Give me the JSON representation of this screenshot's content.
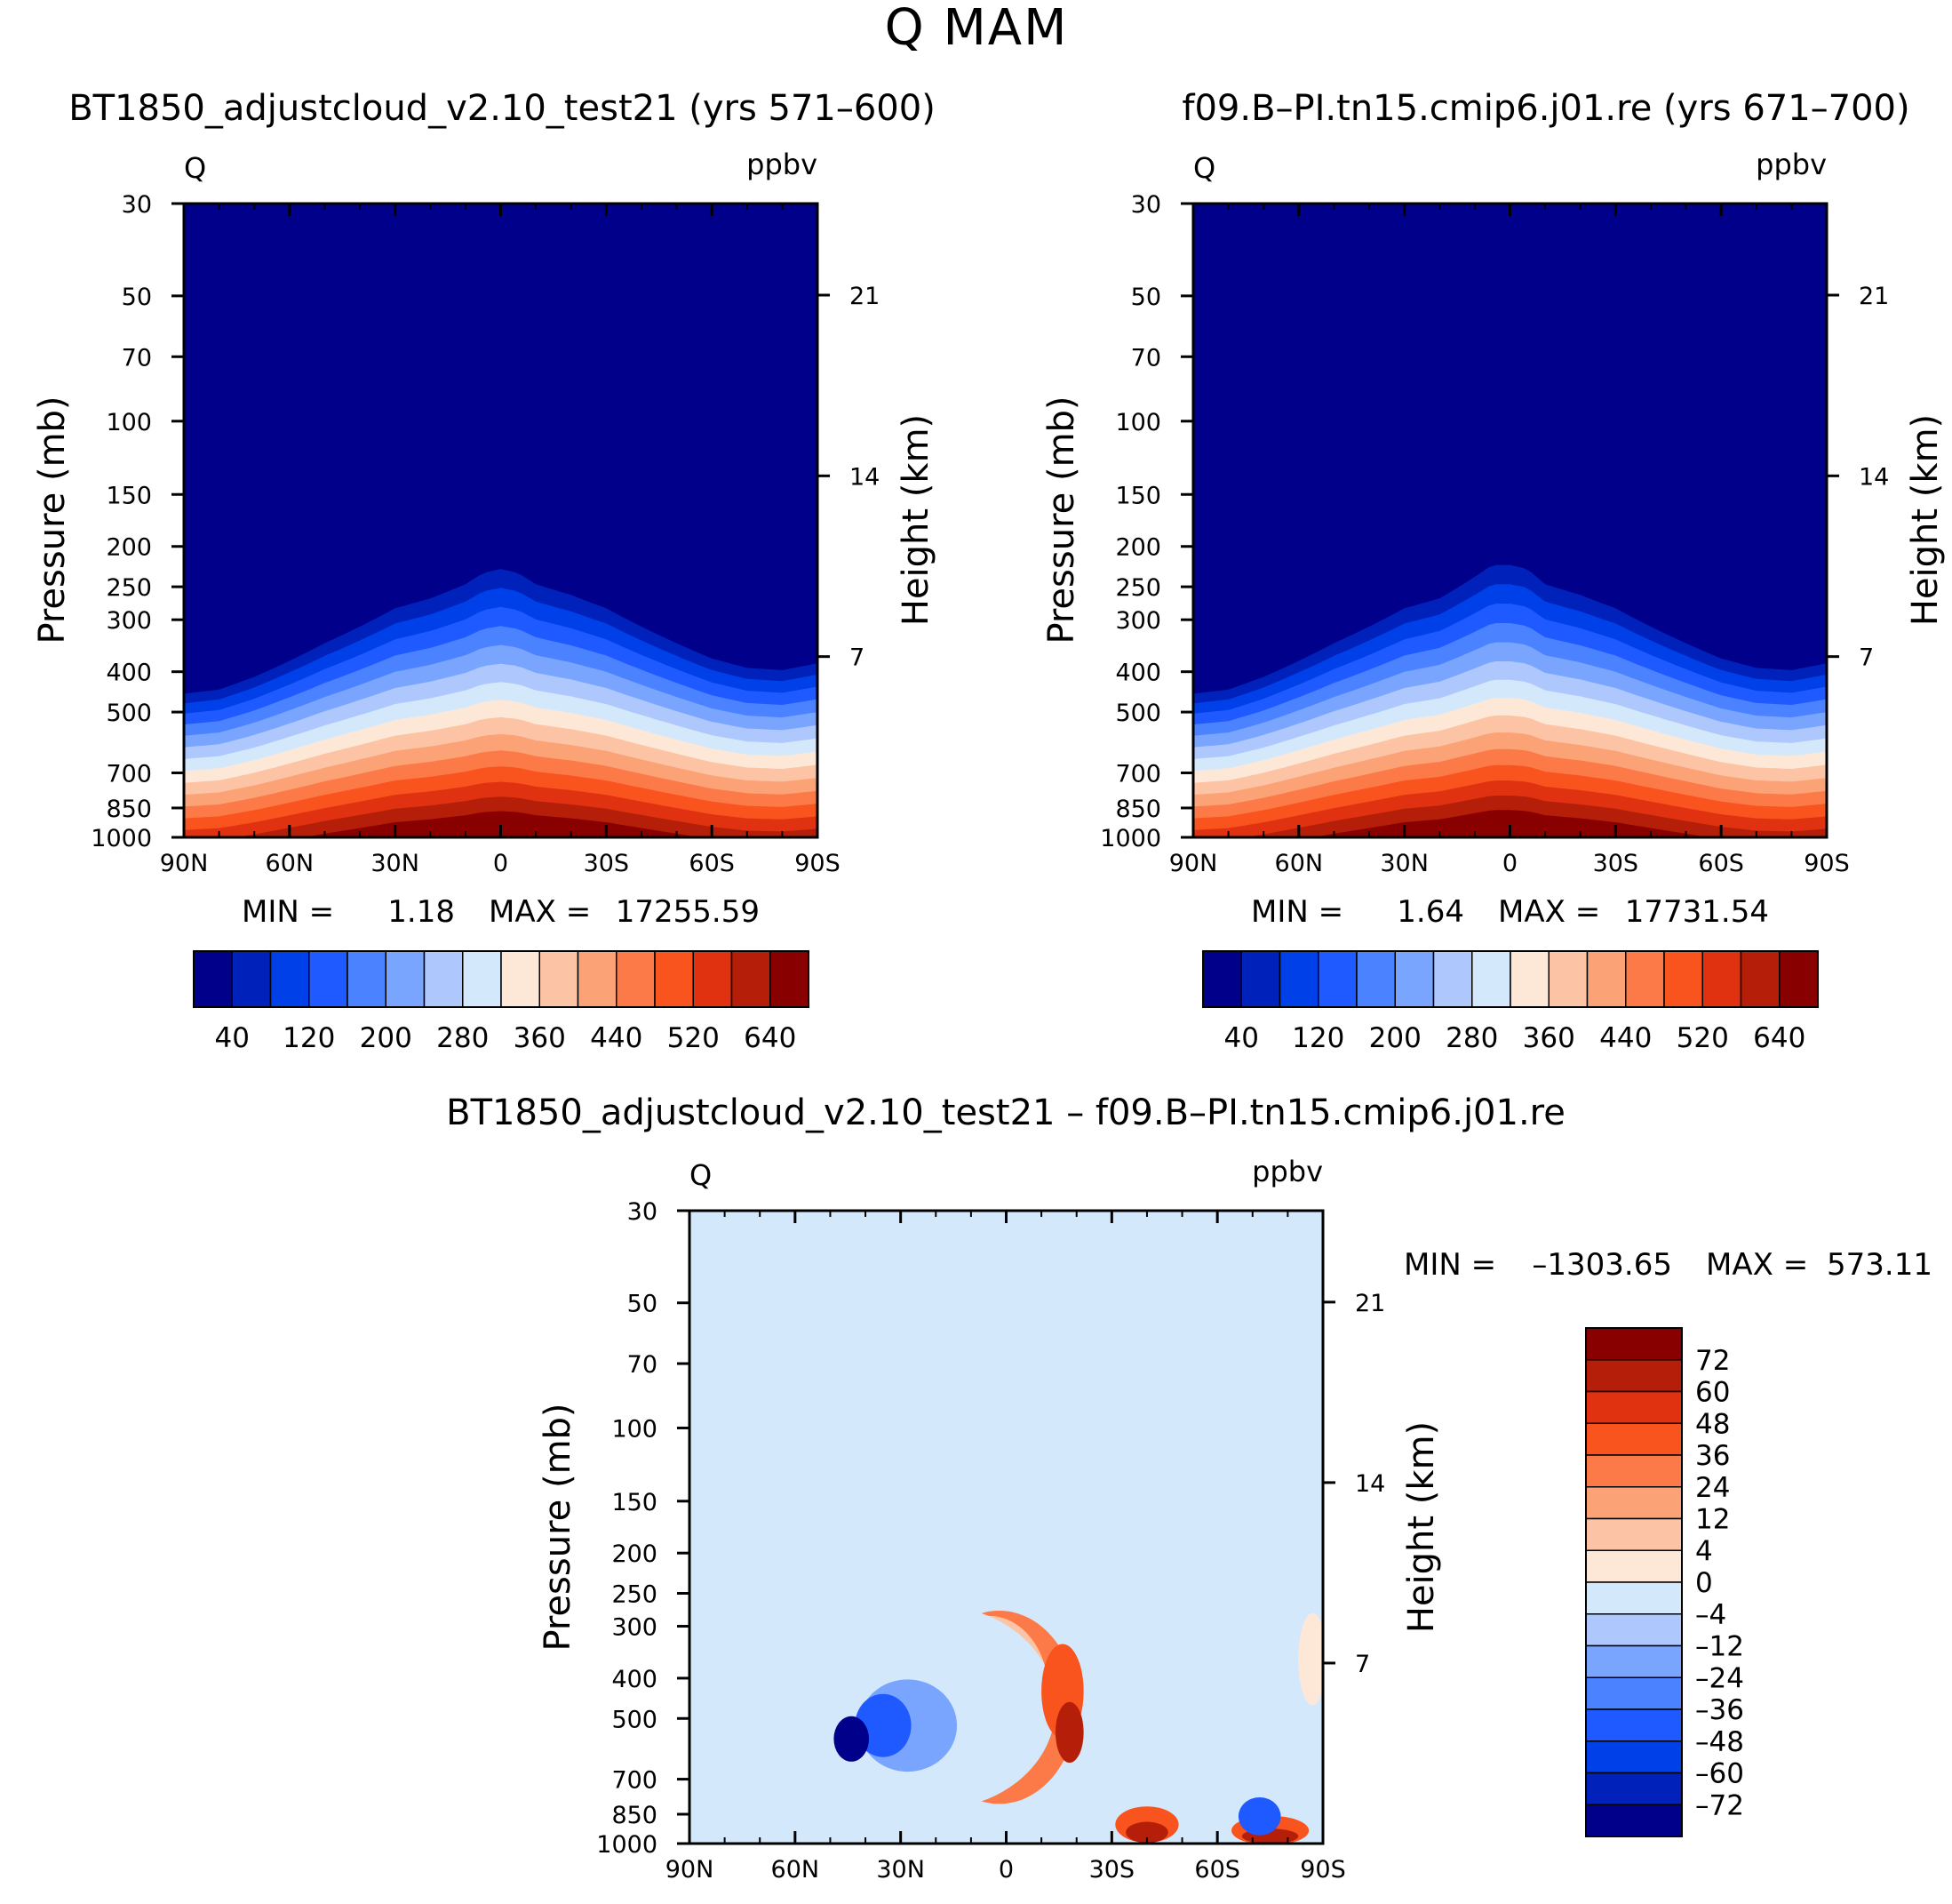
{
  "page_title": "Q  MAM",
  "chart_data": [
    {
      "type": "heatmap",
      "id": "panel-left",
      "title": "BT1850_adjustcloud_v2.10_test21 (yrs 571–600)",
      "corner_left": "Q",
      "corner_right": "ppbv",
      "ylabel": "Pressure (mb)",
      "ylabel_right": "Height (km)",
      "x_ticks": [
        "90N",
        "60N",
        "30N",
        "0",
        "30S",
        "60S",
        "90S"
      ],
      "y_ticks": [
        30,
        50,
        70,
        100,
        150,
        200,
        250,
        300,
        400,
        500,
        700,
        850,
        1000
      ],
      "height_ticks": [
        21,
        14,
        7
      ],
      "xlim": [
        -90,
        90
      ],
      "ylim": [
        1000,
        30
      ],
      "min_label": "MIN =",
      "min_value": "1.18",
      "max_label": "MAX =",
      "max_value": "17255.59",
      "colorbar_labels": [
        "40",
        "120",
        "200",
        "280",
        "360",
        "440",
        "520",
        "640"
      ],
      "colors": [
        "#00008b",
        "#0022bb",
        "#0040e8",
        "#1e5aff",
        "#4a82ff",
        "#7aa5ff",
        "#aec8fd",
        "#d4e8fc",
        "#fde8d8",
        "#fcc3a4",
        "#fba276",
        "#fb7a48",
        "#f9531e",
        "#e03210",
        "#b51e08",
        "#880000"
      ],
      "tropopause_pressure_by_lat": [
        [
          -90,
          360
        ],
        [
          -80,
          375
        ],
        [
          -70,
          370
        ],
        [
          -60,
          350
        ],
        [
          -50,
          320
        ],
        [
          -40,
          290
        ],
        [
          -30,
          260
        ],
        [
          -20,
          240
        ],
        [
          -10,
          225
        ],
        [
          -5,
          210
        ],
        [
          0,
          205
        ],
        [
          5,
          210
        ],
        [
          10,
          225
        ],
        [
          20,
          245
        ],
        [
          30,
          260
        ],
        [
          40,
          290
        ],
        [
          50,
          320
        ],
        [
          60,
          355
        ],
        [
          70,
          390
        ],
        [
          80,
          420
        ],
        [
          90,
          430
        ]
      ],
      "level_step_mb": 20
    },
    {
      "type": "heatmap",
      "id": "panel-right",
      "title": "f09.B–PI.tn15.cmip6.j01.re (yrs 671–700)",
      "corner_left": "Q",
      "corner_right": "ppbv",
      "ylabel": "Pressure (mb)",
      "ylabel_right": "Height (km)",
      "x_ticks": [
        "90N",
        "60N",
        "30N",
        "0",
        "30S",
        "60S",
        "90S"
      ],
      "y_ticks": [
        30,
        50,
        70,
        100,
        150,
        200,
        250,
        300,
        400,
        500,
        700,
        850,
        1000
      ],
      "height_ticks": [
        21,
        14,
        7
      ],
      "xlim": [
        -90,
        90
      ],
      "ylim": [
        1000,
        30
      ],
      "min_label": "MIN =",
      "min_value": "1.64",
      "max_label": "MAX =",
      "max_value": "17731.54",
      "colorbar_labels": [
        "40",
        "120",
        "200",
        "280",
        "360",
        "440",
        "520",
        "640"
      ],
      "colors": [
        "#00008b",
        "#0022bb",
        "#0040e8",
        "#1e5aff",
        "#4a82ff",
        "#7aa5ff",
        "#aec8fd",
        "#d4e8fc",
        "#fde8d8",
        "#fcc3a4",
        "#fba276",
        "#fb7a48",
        "#f9531e",
        "#e03210",
        "#b51e08",
        "#880000"
      ],
      "tropopause_pressure_by_lat": [
        [
          -90,
          360
        ],
        [
          -80,
          375
        ],
        [
          -70,
          370
        ],
        [
          -60,
          350
        ],
        [
          -50,
          320
        ],
        [
          -40,
          290
        ],
        [
          -30,
          260
        ],
        [
          -20,
          240
        ],
        [
          -10,
          225
        ],
        [
          -5,
          205
        ],
        [
          0,
          200
        ],
        [
          5,
          200
        ],
        [
          10,
          215
        ],
        [
          20,
          245
        ],
        [
          30,
          260
        ],
        [
          40,
          290
        ],
        [
          50,
          320
        ],
        [
          60,
          355
        ],
        [
          70,
          390
        ],
        [
          80,
          420
        ],
        [
          90,
          430
        ]
      ],
      "level_step_mb": 20
    },
    {
      "type": "heatmap",
      "id": "panel-diff",
      "title": "BT1850_adjustcloud_v2.10_test21 – f09.B–PI.tn15.cmip6.j01.re",
      "corner_left": "Q",
      "corner_right": "ppbv",
      "ylabel": "Pressure (mb)",
      "ylabel_right": "Height (km)",
      "x_ticks": [
        "90N",
        "60N",
        "30N",
        "0",
        "30S",
        "60S",
        "90S"
      ],
      "y_ticks": [
        30,
        50,
        70,
        100,
        150,
        200,
        250,
        300,
        400,
        500,
        700,
        850,
        1000
      ],
      "height_ticks": [
        21,
        14,
        7
      ],
      "xlim": [
        -90,
        90
      ],
      "ylim": [
        1000,
        30
      ],
      "min_label": "MIN =",
      "min_value": "–1303.65",
      "max_label": "MAX =",
      "max_value": "573.11",
      "colorbar_labels": [
        "72",
        "60",
        "48",
        "36",
        "24",
        "12",
        "4",
        "0",
        "–4",
        "–12",
        "–24",
        "–36",
        "–48",
        "–60",
        "–72"
      ],
      "colors": [
        "#880000",
        "#b51e08",
        "#e03210",
        "#f9531e",
        "#fb7a48",
        "#fba276",
        "#fcc3a4",
        "#fde8d8",
        "#d4e8fc",
        "#aec8fd",
        "#7aa5ff",
        "#4a82ff",
        "#1e5aff",
        "#0040e8",
        "#0022bb",
        "#00008b"
      ],
      "background_color": "#d4e8fc",
      "blobs": [
        {
          "lat": 2,
          "p": 470,
          "rx": 22,
          "rp": 230,
          "level": 4
        },
        {
          "lat": 5,
          "p": 430,
          "rx": 17,
          "rp": 170,
          "level": 6
        },
        {
          "lat": 20,
          "p": 470,
          "rx": 34,
          "rp": 240,
          "level": 8
        },
        {
          "lat": 28,
          "p": 520,
          "rx": 14,
          "rp": 130,
          "level": 10
        },
        {
          "lat": 35,
          "p": 520,
          "rx": 8,
          "rp": 90,
          "level": 12
        },
        {
          "lat": 44,
          "p": 560,
          "rx": 5,
          "rp": 70,
          "level": 15
        },
        {
          "lat": -16,
          "p": 430,
          "rx": 6,
          "rp": 110,
          "level": 3
        },
        {
          "lat": -18,
          "p": 540,
          "rx": 4,
          "rp": 90,
          "level": 1
        },
        {
          "lat": -40,
          "p": 900,
          "rx": 9,
          "rp": 90,
          "level": 3
        },
        {
          "lat": -40,
          "p": 940,
          "rx": 6,
          "rp": 55,
          "level": 1
        },
        {
          "lat": -75,
          "p": 930,
          "rx": 11,
          "rp": 80,
          "level": 3
        },
        {
          "lat": -75,
          "p": 960,
          "rx": 8,
          "rp": 40,
          "level": 1
        },
        {
          "lat": -87,
          "p": 360,
          "rx": 4,
          "rp": 90,
          "level": 7
        },
        {
          "lat": -72,
          "p": 860,
          "rx": 6,
          "rp": 90,
          "level": 12
        }
      ]
    }
  ]
}
